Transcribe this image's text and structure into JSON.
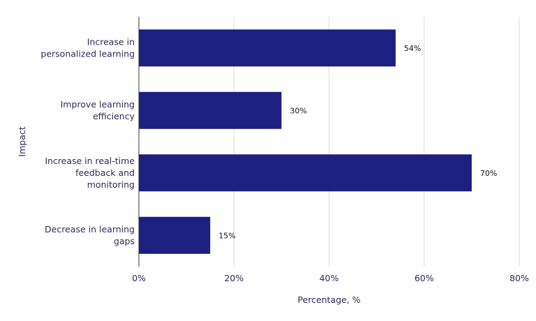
{
  "chart_data": {
    "type": "bar",
    "orientation": "horizontal",
    "categories": [
      [
        "Increase in",
        "personalized learning"
      ],
      [
        "Improve learning",
        "efficiency"
      ],
      [
        "Increase in real-time",
        "feedback and",
        "monitoring"
      ],
      [
        "Decrease in learning",
        "gaps"
      ]
    ],
    "values": [
      54,
      30,
      70,
      15
    ],
    "value_labels": [
      "54%",
      "30%",
      "70%",
      "15%"
    ],
    "xlabel": "Percentage, %",
    "ylabel": "Impact",
    "xlim": [
      0,
      80
    ],
    "x_ticks": [
      0,
      20,
      40,
      60,
      80
    ],
    "x_tick_labels": [
      "0%",
      "20%",
      "40%",
      "60%",
      "80%"
    ],
    "grid": "vertical",
    "bar_color": "#1d2080"
  }
}
